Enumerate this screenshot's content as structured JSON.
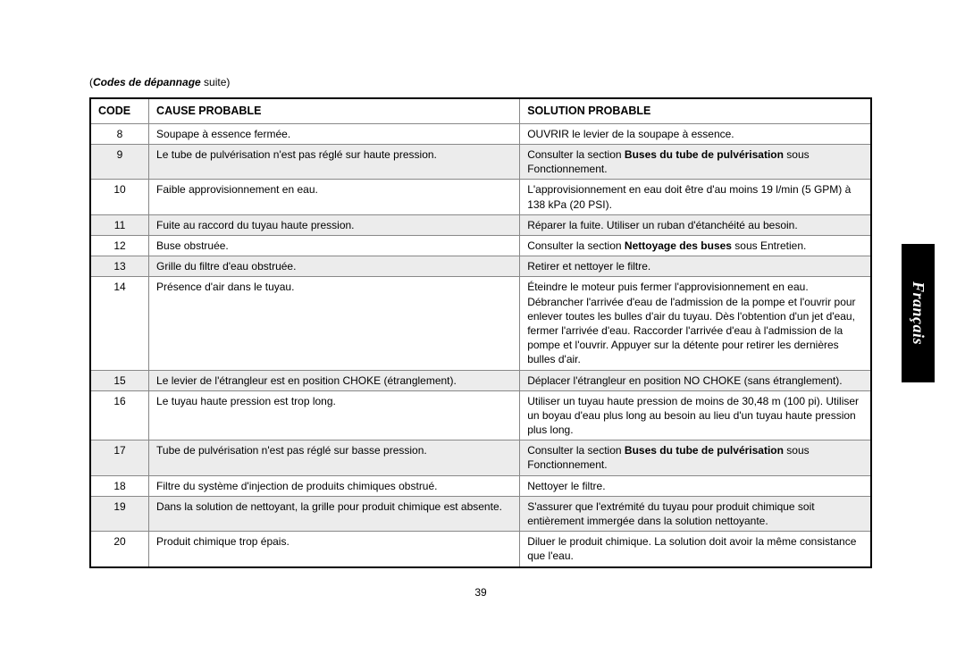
{
  "subtitle_prefix": "(",
  "subtitle_bold": "Codes de dépannage",
  "subtitle_rest": " suite)",
  "columns": [
    "CODE",
    "CAUSE PROBABLE",
    "SOLUTION PROBABLE"
  ],
  "side_tab": "Français",
  "page_number": "39",
  "colors": {
    "shade": "#ececec",
    "border_outer": "#000000",
    "border_inner": "#888888"
  },
  "rows": [
    {
      "code": "8",
      "shaded": false,
      "cause": "Soupape à essence fermée.",
      "solution": [
        {
          "t": "OUVRIR le levier de la soupape à essence."
        }
      ]
    },
    {
      "code": "9",
      "shaded": true,
      "cause": "Le tube de pulvérisation n'est pas réglé sur haute pression.",
      "solution": [
        {
          "t": "Consulter la section "
        },
        {
          "t": "Buses du tube de pulvérisation",
          "b": true
        },
        {
          "t": " sous Fonctionnement."
        }
      ]
    },
    {
      "code": "10",
      "shaded": false,
      "cause": "Faible approvisionnement en eau.",
      "solution": [
        {
          "t": "L'approvisionnement en eau doit être d'au moins 19 l/min (5 GPM) à 138 kPa (20 PSI)."
        }
      ]
    },
    {
      "code": "11",
      "shaded": true,
      "cause": "Fuite au raccord du tuyau haute pression.",
      "solution": [
        {
          "t": "Réparer la fuite. Utiliser un ruban d'étanchéité au besoin."
        }
      ]
    },
    {
      "code": "12",
      "shaded": false,
      "cause": "Buse obstruée.",
      "solution": [
        {
          "t": "Consulter la section "
        },
        {
          "t": "Nettoyage des buses",
          "b": true
        },
        {
          "t": " sous Entretien."
        }
      ]
    },
    {
      "code": "13",
      "shaded": true,
      "cause": "Grille du filtre d'eau obstruée.",
      "solution": [
        {
          "t": "Retirer et nettoyer le filtre."
        }
      ]
    },
    {
      "code": "14",
      "shaded": false,
      "cause": "Présence d'air dans le tuyau.",
      "solution": [
        {
          "t": "Éteindre le moteur puis fermer l'approvisionnement en eau. Débrancher l'arrivée d'eau de l'admission de la pompe et l'ouvrir pour enlever toutes les bulles d'air du tuyau. Dès l'obtention d'un jet d'eau, fermer l'arrivée d'eau. Raccorder l'arrivée d'eau à l'admission de la pompe et l'ouvrir. Appuyer sur la détente pour retirer les dernières bulles d'air."
        }
      ]
    },
    {
      "code": "15",
      "shaded": true,
      "cause": "Le levier de l'étrangleur est en position CHOKE (étranglement).",
      "solution": [
        {
          "t": "Déplacer l'étrangleur en position NO CHOKE (sans étranglement)."
        }
      ]
    },
    {
      "code": "16",
      "shaded": false,
      "cause": "Le tuyau haute pression est trop long.",
      "solution": [
        {
          "t": "Utiliser un tuyau haute pression de moins de 30,48 m (100 pi). Utiliser un boyau d'eau plus long au besoin au lieu d'un tuyau haute pression plus long."
        }
      ]
    },
    {
      "code": "17",
      "shaded": true,
      "cause": "Tube de pulvérisation n'est pas réglé sur basse pression.",
      "solution": [
        {
          "t": "Consulter la section "
        },
        {
          "t": "Buses du tube de pulvérisation",
          "b": true
        },
        {
          "t": " sous Fonctionnement."
        }
      ]
    },
    {
      "code": "18",
      "shaded": false,
      "cause": "Filtre du système d'injection de produits chimiques obstrué.",
      "solution": [
        {
          "t": "Nettoyer le filtre."
        }
      ]
    },
    {
      "code": "19",
      "shaded": true,
      "cause": "Dans la solution de nettoyant, la grille pour produit chimique est absente.",
      "solution": [
        {
          "t": "S'assurer que l'extrémité du tuyau pour produit chimique soit entièrement immergée dans la solution nettoyante."
        }
      ]
    },
    {
      "code": "20",
      "shaded": false,
      "cause": "Produit chimique trop épais.",
      "solution": [
        {
          "t": "Diluer le produit chimique. La solution doit avoir la même consistance que l'eau."
        }
      ]
    }
  ]
}
